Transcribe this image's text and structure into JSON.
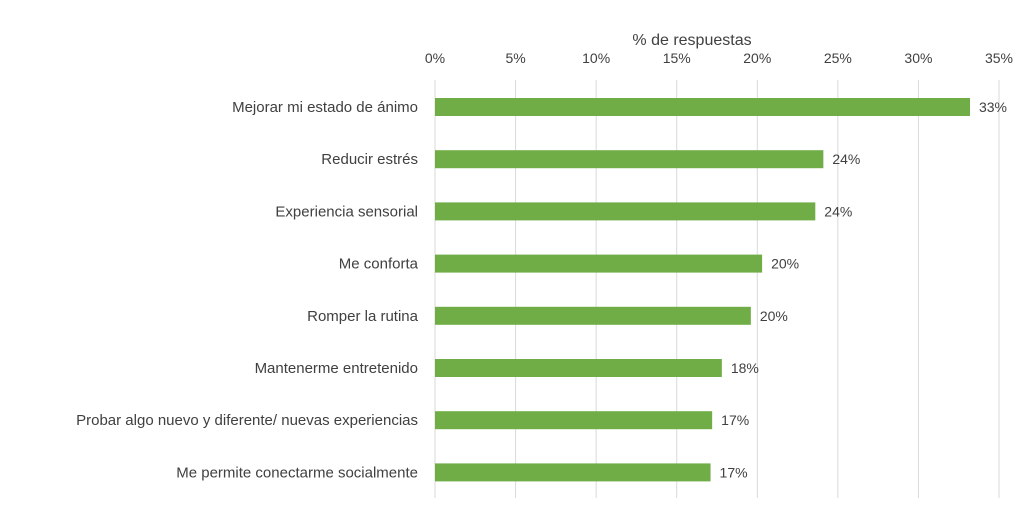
{
  "chart_data": {
    "type": "bar",
    "orientation": "horizontal",
    "xlabel": "% de respuestas",
    "xlabel_position": "top",
    "xlim": [
      0,
      35
    ],
    "xticks": [
      0,
      5,
      10,
      15,
      20,
      25,
      30,
      35
    ],
    "xtick_labels": [
      "0%",
      "5%",
      "10%",
      "15%",
      "20%",
      "25%",
      "30%",
      "35%"
    ],
    "grid": true,
    "bar_color": "#70ad47",
    "categories": [
      "Mejorar mi estado de ánimo",
      "Reducir estrés",
      "Experiencia sensorial",
      "Me conforta",
      "Romper la rutina",
      "Mantenerme entretenido",
      "Probar algo nuevo y diferente/ nuevas experiencias",
      "Me permite conectarme socialmente"
    ],
    "values": [
      33.2,
      24.1,
      23.6,
      20.3,
      19.6,
      17.8,
      17.2,
      17.1
    ],
    "data_labels": [
      "33%",
      "24%",
      "24%",
      "20%",
      "20%",
      "18%",
      "17%",
      "17%"
    ]
  }
}
